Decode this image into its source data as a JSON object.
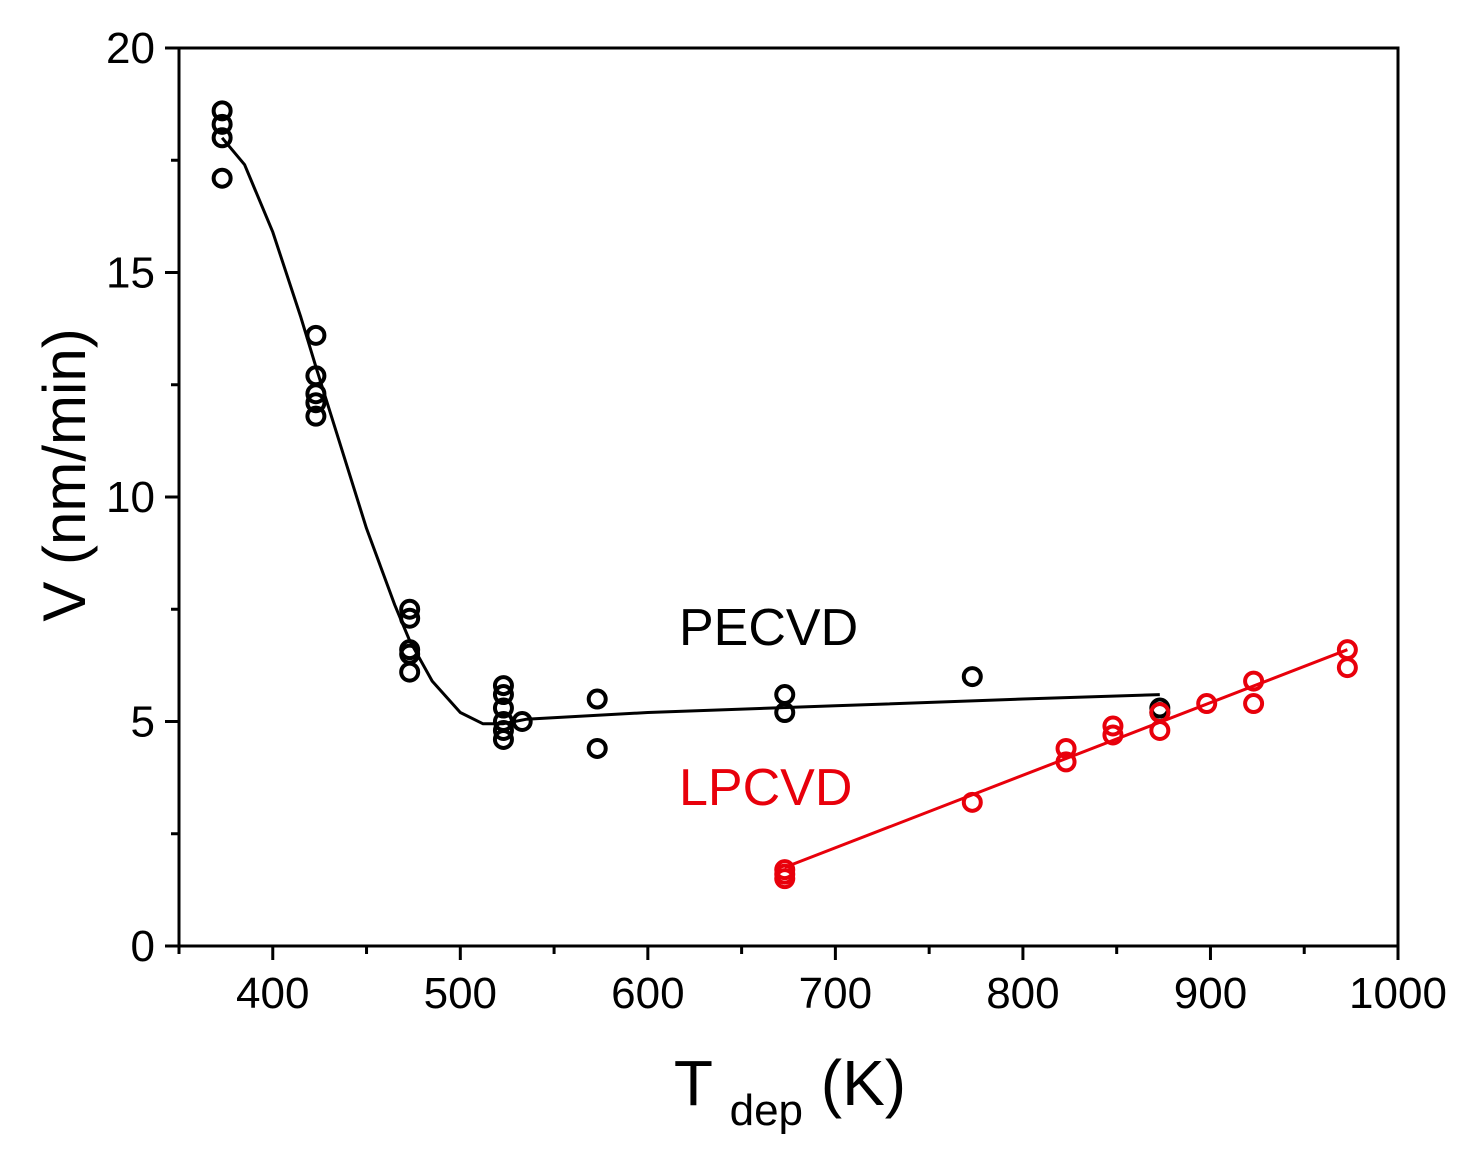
{
  "chart_data": {
    "type": "scatter",
    "xlabel": {
      "main": "T",
      "sub": "dep",
      "rest": " (K)"
    },
    "ylabel": "V (nm/min)",
    "xlim": [
      350,
      1000
    ],
    "ylim": [
      0,
      20
    ],
    "x_ticks": [
      400,
      500,
      600,
      700,
      800,
      900,
      1000
    ],
    "x_minor_ticks": [
      350,
      450,
      550,
      650,
      750,
      850,
      950
    ],
    "y_ticks": [
      0,
      5,
      10,
      15,
      20
    ],
    "y_minor_ticks": [
      2.5,
      7.5,
      12.5,
      17.5
    ],
    "grid": false,
    "series": [
      {
        "name": "PECVD",
        "color": "#000000",
        "points": [
          [
            373,
            18.6
          ],
          [
            373,
            18.3
          ],
          [
            373,
            18.0
          ],
          [
            373,
            17.1
          ],
          [
            423,
            13.6
          ],
          [
            423,
            12.7
          ],
          [
            423,
            12.3
          ],
          [
            423,
            12.1
          ],
          [
            423,
            11.8
          ],
          [
            473,
            7.5
          ],
          [
            473,
            7.3
          ],
          [
            473,
            6.6
          ],
          [
            473,
            6.5
          ],
          [
            473,
            6.1
          ],
          [
            523,
            5.8
          ],
          [
            523,
            5.6
          ],
          [
            523,
            5.3
          ],
          [
            523,
            5.0
          ],
          [
            523,
            4.8
          ],
          [
            523,
            4.6
          ],
          [
            533,
            5.0
          ],
          [
            573,
            5.5
          ],
          [
            573,
            4.4
          ],
          [
            673,
            5.6
          ],
          [
            673,
            5.2
          ],
          [
            773,
            6.0
          ],
          [
            873,
            5.3
          ],
          [
            873,
            5.2
          ]
        ],
        "fit": [
          [
            373,
            18.0
          ],
          [
            385,
            17.4
          ],
          [
            400,
            15.9
          ],
          [
            415,
            14.0
          ],
          [
            423,
            12.9
          ],
          [
            435,
            11.3
          ],
          [
            450,
            9.3
          ],
          [
            465,
            7.6
          ],
          [
            473,
            6.8
          ],
          [
            485,
            5.9
          ],
          [
            500,
            5.2
          ],
          [
            512,
            4.95
          ],
          [
            523,
            4.95
          ],
          [
            535,
            5.05
          ],
          [
            600,
            5.2
          ],
          [
            700,
            5.35
          ],
          [
            800,
            5.5
          ],
          [
            873,
            5.6
          ]
        ]
      },
      {
        "name": "LPCVD",
        "color": "#e8000b",
        "points": [
          [
            673,
            1.7
          ],
          [
            673,
            1.6
          ],
          [
            673,
            1.5
          ],
          [
            773,
            3.2
          ],
          [
            823,
            4.4
          ],
          [
            823,
            4.1
          ],
          [
            848,
            4.9
          ],
          [
            848,
            4.7
          ],
          [
            873,
            5.2
          ],
          [
            873,
            4.8
          ],
          [
            898,
            5.4
          ],
          [
            923,
            5.9
          ],
          [
            923,
            5.4
          ],
          [
            973,
            6.6
          ],
          [
            973,
            6.2
          ]
        ],
        "fit": [
          [
            673,
            1.75
          ],
          [
            973,
            6.6
          ]
        ]
      }
    ]
  }
}
